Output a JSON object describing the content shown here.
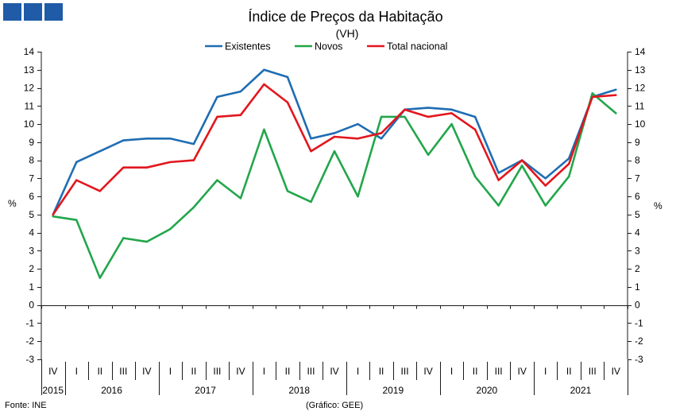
{
  "logo": {
    "color": "#1f5ba6"
  },
  "chart_data": {
    "type": "line",
    "title": "Índice de Preços da Habitação",
    "subtitle": "(VH)",
    "ylabel": "%",
    "ylabel_right": "%",
    "ylim": [
      -3,
      14
    ],
    "yticks": [
      14,
      13,
      12,
      11,
      10,
      9,
      8,
      7,
      6,
      5,
      4,
      3,
      2,
      1,
      0,
      -1,
      -2,
      -3
    ],
    "categories": [
      "IV",
      "I",
      "II",
      "III",
      "IV",
      "I",
      "II",
      "III",
      "IV",
      "I",
      "II",
      "III",
      "IV",
      "I",
      "II",
      "III",
      "IV",
      "I",
      "II",
      "III",
      "IV",
      "I",
      "II",
      "III",
      "IV"
    ],
    "years": [
      {
        "label": "2015",
        "quarters": 1
      },
      {
        "label": "2016",
        "quarters": 4
      },
      {
        "label": "2017",
        "quarters": 4
      },
      {
        "label": "2018",
        "quarters": 4
      },
      {
        "label": "2019",
        "quarters": 4
      },
      {
        "label": "2020",
        "quarters": 4
      },
      {
        "label": "2021",
        "quarters": 4
      }
    ],
    "legend_position": "top-center",
    "grid": false,
    "series": [
      {
        "name": "Existentes",
        "color": "#1f6db3",
        "values": [
          5.0,
          7.9,
          8.5,
          9.1,
          9.2,
          9.2,
          8.9,
          11.5,
          11.8,
          13.0,
          12.6,
          9.2,
          9.5,
          10.0,
          9.2,
          10.8,
          10.9,
          10.8,
          10.4,
          7.3,
          8.0,
          7.0,
          8.1,
          11.5,
          11.9
        ]
      },
      {
        "name": "Novos",
        "color": "#22a64b",
        "values": [
          4.9,
          4.7,
          1.5,
          3.7,
          3.5,
          4.2,
          5.4,
          6.9,
          5.9,
          9.7,
          6.3,
          5.7,
          8.5,
          6.0,
          10.4,
          10.4,
          8.3,
          10.0,
          7.1,
          5.5,
          7.7,
          5.5,
          7.1,
          11.7,
          10.6
        ]
      },
      {
        "name": "Total nacional",
        "color": "#e3161d",
        "values": [
          5.0,
          6.9,
          6.3,
          7.6,
          7.6,
          7.9,
          8.0,
          10.4,
          10.5,
          12.2,
          11.2,
          8.5,
          9.3,
          9.2,
          9.5,
          10.8,
          10.4,
          10.6,
          9.7,
          6.9,
          8.0,
          6.6,
          7.8,
          11.5,
          11.6
        ]
      }
    ]
  },
  "footer": {
    "source": "Fonte: INE",
    "credit": "(Gráfico: GEE)"
  }
}
